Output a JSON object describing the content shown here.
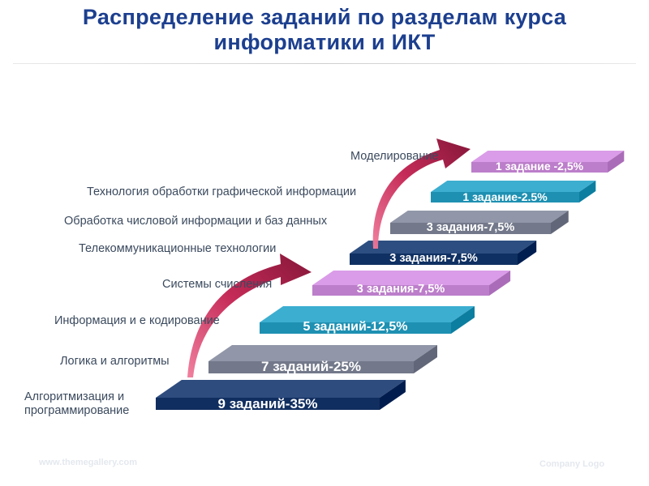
{
  "title": {
    "line1": "Распределение заданий по разделам курса",
    "line2": "информатики и ИКТ"
  },
  "steps": [
    {
      "section": "Алгоритмизация и программирование",
      "section_line1": "Алгоритмизация и",
      "section_line2": "программирование",
      "label": "9 заданий-35%",
      "color": "#1d3a6c"
    },
    {
      "section": "Логика и алгоритмы",
      "label": "7 заданий-25%",
      "color": "#7f8596"
    },
    {
      "section": "Информация и е кодирование",
      "label": "5 заданий-12,5%",
      "color": "#2a9cbe"
    },
    {
      "section": "Системы счисления",
      "label": "3 задания-7,5%",
      "color": "#c88ad6"
    },
    {
      "section": "Телекоммуникационные технологии",
      "label": "3 задания-7,5%",
      "color": "#1b3c6e"
    },
    {
      "section": "Обработка числовой информации и баз данных",
      "label": "3 задания-7,5%",
      "color": "#7f8596"
    },
    {
      "section": "Технология обработки графической информации",
      "label": "1 задание-2.5%",
      "color": "#2a9cbe"
    },
    {
      "section": "Моделирование",
      "label": "1 задание -2,5%",
      "color": "#c88ad6"
    }
  ],
  "colors": {
    "title": "#1c3f8f",
    "arrow": "#b4184a"
  },
  "footer": {
    "website": "www.themegallery.com",
    "logo": "Company Logo"
  }
}
